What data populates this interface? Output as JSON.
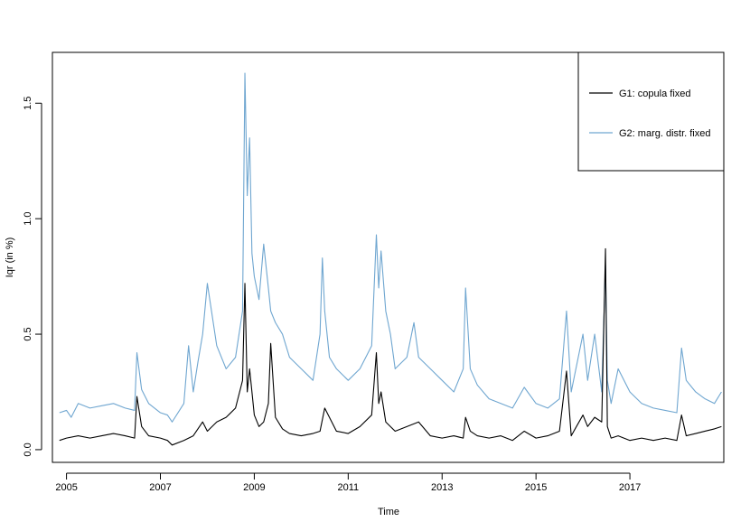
{
  "chart_data": {
    "type": "line",
    "xlabel": "Time",
    "ylabel": "Iqr (in %)",
    "xlim": [
      2004.7,
      2019.0
    ],
    "ylim": [
      -0.055,
      1.72
    ],
    "x_ticks": [
      2005,
      2007,
      2009,
      2011,
      2013,
      2015,
      2017
    ],
    "x_tick_labels": [
      "2005",
      "2007",
      "2009",
      "2011",
      "2013",
      "2015",
      "2017"
    ],
    "y_ticks": [
      0.0,
      0.5,
      1.0,
      1.5
    ],
    "y_tick_labels": [
      "0.0",
      "0.5",
      "1.0",
      "1.5"
    ],
    "grid": false,
    "legend_position": "top-right",
    "series": [
      {
        "name": "G1: copula fixed",
        "color": "#000000",
        "x": [
          2004.85,
          2005.0,
          2005.25,
          2005.5,
          2005.75,
          2006.0,
          2006.25,
          2006.45,
          2006.5,
          2006.6,
          2006.75,
          2007.0,
          2007.15,
          2007.25,
          2007.5,
          2007.7,
          2007.9,
          2008.0,
          2008.2,
          2008.4,
          2008.6,
          2008.75,
          2008.8,
          2008.85,
          2008.9,
          2009.0,
          2009.1,
          2009.2,
          2009.3,
          2009.35,
          2009.45,
          2009.6,
          2009.75,
          2010.0,
          2010.25,
          2010.4,
          2010.5,
          2010.75,
          2011.0,
          2011.25,
          2011.5,
          2011.6,
          2011.65,
          2011.7,
          2011.8,
          2012.0,
          2012.25,
          2012.5,
          2012.75,
          2013.0,
          2013.25,
          2013.45,
          2013.5,
          2013.6,
          2013.75,
          2014.0,
          2014.25,
          2014.5,
          2014.75,
          2015.0,
          2015.25,
          2015.5,
          2015.65,
          2015.75,
          2016.0,
          2016.1,
          2016.25,
          2016.4,
          2016.48,
          2016.52,
          2016.6,
          2016.75,
          2017.0,
          2017.25,
          2017.5,
          2017.75,
          2018.0,
          2018.1,
          2018.2,
          2018.4,
          2018.6,
          2018.8,
          2018.95
        ],
        "values": [
          0.04,
          0.05,
          0.06,
          0.05,
          0.06,
          0.07,
          0.06,
          0.05,
          0.23,
          0.1,
          0.06,
          0.05,
          0.04,
          0.02,
          0.04,
          0.06,
          0.12,
          0.08,
          0.12,
          0.14,
          0.18,
          0.3,
          0.72,
          0.25,
          0.35,
          0.15,
          0.1,
          0.12,
          0.2,
          0.46,
          0.14,
          0.09,
          0.07,
          0.06,
          0.07,
          0.08,
          0.18,
          0.08,
          0.07,
          0.1,
          0.15,
          0.42,
          0.2,
          0.25,
          0.12,
          0.08,
          0.1,
          0.12,
          0.06,
          0.05,
          0.06,
          0.05,
          0.14,
          0.08,
          0.06,
          0.05,
          0.06,
          0.04,
          0.08,
          0.05,
          0.06,
          0.08,
          0.34,
          0.06,
          0.15,
          0.1,
          0.14,
          0.12,
          0.87,
          0.1,
          0.05,
          0.06,
          0.04,
          0.05,
          0.04,
          0.05,
          0.04,
          0.15,
          0.06,
          0.07,
          0.08,
          0.09,
          0.1
        ]
      },
      {
        "name": "G2: marg. distr. fixed",
        "color": "#6FA6D0",
        "x": [
          2004.85,
          2005.0,
          2005.1,
          2005.25,
          2005.5,
          2005.75,
          2006.0,
          2006.25,
          2006.45,
          2006.5,
          2006.6,
          2006.75,
          2007.0,
          2007.15,
          2007.25,
          2007.5,
          2007.6,
          2007.7,
          2007.8,
          2007.9,
          2008.0,
          2008.2,
          2008.4,
          2008.6,
          2008.75,
          2008.8,
          2008.85,
          2008.9,
          2008.95,
          2009.0,
          2009.1,
          2009.2,
          2009.3,
          2009.35,
          2009.45,
          2009.6,
          2009.75,
          2010.0,
          2010.25,
          2010.4,
          2010.45,
          2010.5,
          2010.6,
          2010.75,
          2011.0,
          2011.25,
          2011.5,
          2011.6,
          2011.65,
          2011.7,
          2011.8,
          2011.9,
          2012.0,
          2012.25,
          2012.4,
          2012.5,
          2012.75,
          2013.0,
          2013.25,
          2013.45,
          2013.5,
          2013.6,
          2013.75,
          2014.0,
          2014.25,
          2014.5,
          2014.75,
          2015.0,
          2015.25,
          2015.5,
          2015.65,
          2015.75,
          2016.0,
          2016.1,
          2016.25,
          2016.4,
          2016.48,
          2016.52,
          2016.6,
          2016.75,
          2017.0,
          2017.25,
          2017.5,
          2017.75,
          2018.0,
          2018.1,
          2018.2,
          2018.4,
          2018.6,
          2018.8,
          2018.95
        ],
        "values": [
          0.16,
          0.17,
          0.14,
          0.2,
          0.18,
          0.19,
          0.2,
          0.18,
          0.17,
          0.42,
          0.26,
          0.2,
          0.16,
          0.15,
          0.12,
          0.2,
          0.45,
          0.25,
          0.38,
          0.5,
          0.72,
          0.45,
          0.35,
          0.4,
          0.6,
          1.63,
          1.1,
          1.35,
          0.85,
          0.75,
          0.65,
          0.89,
          0.7,
          0.6,
          0.55,
          0.5,
          0.4,
          0.35,
          0.3,
          0.5,
          0.83,
          0.6,
          0.4,
          0.35,
          0.3,
          0.35,
          0.45,
          0.93,
          0.7,
          0.86,
          0.6,
          0.5,
          0.35,
          0.4,
          0.55,
          0.4,
          0.35,
          0.3,
          0.25,
          0.35,
          0.7,
          0.35,
          0.28,
          0.22,
          0.2,
          0.18,
          0.27,
          0.2,
          0.18,
          0.22,
          0.6,
          0.25,
          0.5,
          0.3,
          0.5,
          0.25,
          0.8,
          0.3,
          0.2,
          0.35,
          0.25,
          0.2,
          0.18,
          0.17,
          0.16,
          0.44,
          0.3,
          0.25,
          0.22,
          0.2,
          0.25
        ]
      }
    ]
  }
}
